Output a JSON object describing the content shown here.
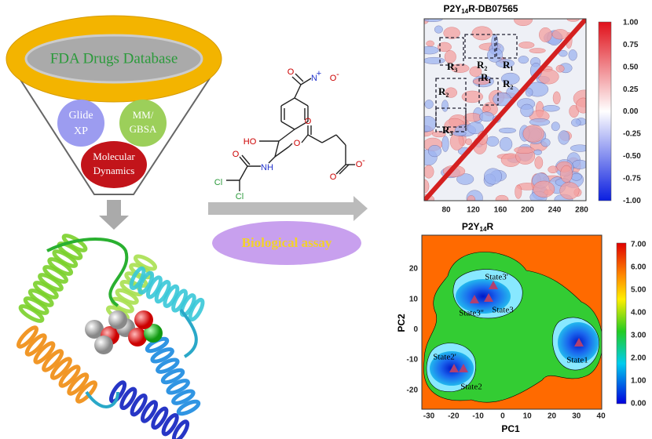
{
  "funnel": {
    "title": "FDA Drugs Database",
    "methods": [
      [
        "Glide",
        "XP"
      ],
      [
        "MM/",
        "GBSA"
      ],
      [
        "Molecular",
        "Dynamics"
      ]
    ]
  },
  "molecule": {
    "atoms": [
      "O",
      "N",
      "+",
      "O",
      "-",
      "HO",
      "O",
      "O",
      "NH",
      "O",
      "Cl",
      "Cl",
      "O",
      "O",
      "-"
    ]
  },
  "assay": {
    "label": "Biological assay"
  },
  "dccm": {
    "title": [
      "P2Y",
      "14",
      "R-DB07565"
    ],
    "xticks": [
      "80",
      "120",
      "160",
      "200",
      "240",
      "280"
    ],
    "colorbar": [
      "1.00",
      "0.75",
      "0.50",
      "0.25",
      "0.00",
      "-0.25",
      "-0.50",
      "-0.75",
      "-1.00"
    ],
    "regions": [
      [
        "R",
        "3"
      ],
      [
        "R",
        "2"
      ],
      [
        "R",
        "1"
      ],
      [
        "R",
        "1"
      ],
      [
        "R",
        "2"
      ],
      [
        "R",
        "2"
      ],
      [
        "R",
        "3"
      ]
    ]
  },
  "fel": {
    "title": [
      "P2Y",
      "14",
      "R"
    ],
    "xlabel": "PC1",
    "ylabel": "PC2",
    "xticks": [
      "-30",
      "-20",
      "-10",
      "0",
      "10",
      "20",
      "30",
      "40"
    ],
    "yticks": [
      "20",
      "10",
      "0",
      "-10",
      "-20"
    ],
    "colorbar": [
      "7.00",
      "6.00",
      "5.00",
      "4.00",
      "3.00",
      "2.00",
      "1.00",
      "0.00"
    ],
    "states": [
      "State3'",
      "State3''",
      "State3",
      "State2'",
      "State2",
      "State1"
    ]
  }
}
